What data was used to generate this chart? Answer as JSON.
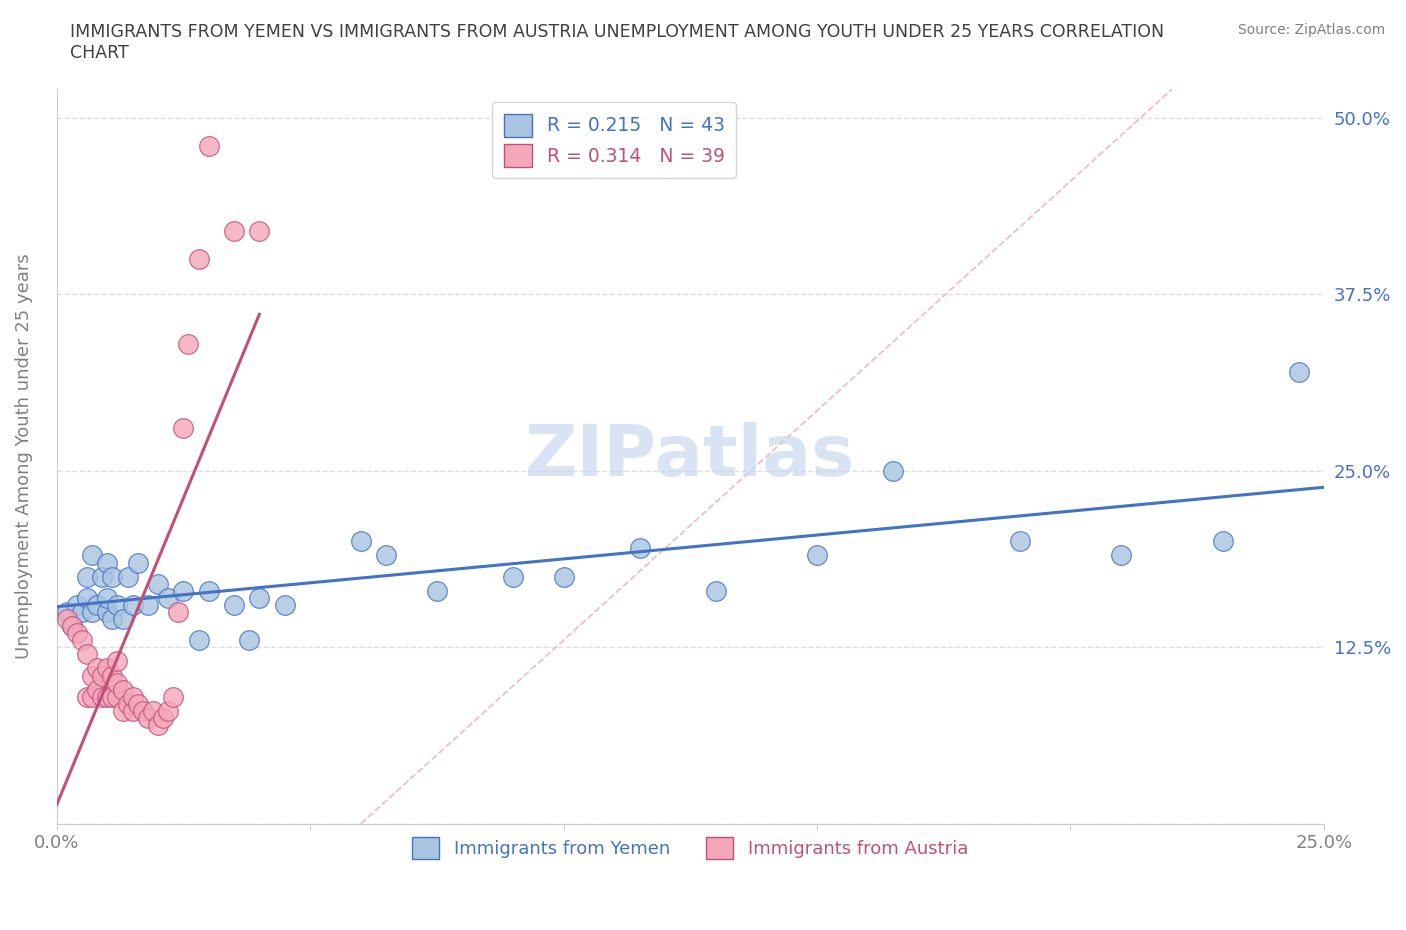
{
  "title": "IMMIGRANTS FROM YEMEN VS IMMIGRANTS FROM AUSTRIA UNEMPLOYMENT AMONG YOUTH UNDER 25 YEARS CORRELATION\nCHART",
  "source": "Source: ZipAtlas.com",
  "ylabel": "Unemployment Among Youth under 25 years",
  "xlabel": "",
  "xlim": [
    0.0,
    0.25
  ],
  "ylim": [
    0.0,
    0.52
  ],
  "xticks": [
    0.0,
    0.05,
    0.1,
    0.15,
    0.2,
    0.25
  ],
  "xticklabels": [
    "0.0%",
    "",
    "",
    "",
    "",
    "25.0%"
  ],
  "ytick_positions": [
    0.0,
    0.125,
    0.25,
    0.375,
    0.5
  ],
  "yticklabels": [
    "",
    "12.5%",
    "25.0%",
    "37.5%",
    "50.0%"
  ],
  "R_yemen": 0.215,
  "N_yemen": 43,
  "R_austria": 0.314,
  "N_austria": 39,
  "color_yemen": "#a8c4e0",
  "color_austria": "#f4a7b9",
  "line_color_yemen": "#4472c4",
  "line_color_austria": "#c0507a",
  "diag_line_color": "#e8c0c8",
  "watermark_color": "#c8d8ee",
  "background_color": "#ffffff",
  "grid_color": "#dddddd",
  "title_color": "#404040",
  "tick_label_color": "#808080",
  "yemen_x": [
    0.002,
    0.003,
    0.004,
    0.005,
    0.006,
    0.006,
    0.007,
    0.007,
    0.008,
    0.009,
    0.01,
    0.01,
    0.01,
    0.011,
    0.011,
    0.012,
    0.013,
    0.014,
    0.015,
    0.016,
    0.018,
    0.02,
    0.022,
    0.025,
    0.028,
    0.03,
    0.035,
    0.038,
    0.04,
    0.045,
    0.06,
    0.065,
    0.075,
    0.09,
    0.1,
    0.115,
    0.13,
    0.15,
    0.165,
    0.19,
    0.21,
    0.23,
    0.245
  ],
  "yemen_y": [
    0.15,
    0.14,
    0.155,
    0.15,
    0.16,
    0.175,
    0.15,
    0.19,
    0.155,
    0.175,
    0.15,
    0.16,
    0.185,
    0.145,
    0.175,
    0.155,
    0.145,
    0.175,
    0.155,
    0.185,
    0.155,
    0.17,
    0.16,
    0.165,
    0.13,
    0.165,
    0.155,
    0.13,
    0.16,
    0.155,
    0.2,
    0.19,
    0.165,
    0.175,
    0.175,
    0.195,
    0.165,
    0.19,
    0.25,
    0.2,
    0.19,
    0.2,
    0.32
  ],
  "austria_x": [
    0.002,
    0.003,
    0.004,
    0.005,
    0.006,
    0.006,
    0.007,
    0.007,
    0.008,
    0.008,
    0.009,
    0.009,
    0.01,
    0.01,
    0.011,
    0.011,
    0.012,
    0.012,
    0.012,
    0.013,
    0.013,
    0.014,
    0.015,
    0.015,
    0.016,
    0.017,
    0.018,
    0.019,
    0.02,
    0.021,
    0.022,
    0.023,
    0.024,
    0.025,
    0.026,
    0.028,
    0.03,
    0.035,
    0.04
  ],
  "austria_y": [
    0.145,
    0.14,
    0.135,
    0.13,
    0.09,
    0.12,
    0.09,
    0.105,
    0.095,
    0.11,
    0.09,
    0.105,
    0.09,
    0.11,
    0.09,
    0.105,
    0.09,
    0.1,
    0.115,
    0.08,
    0.095,
    0.085,
    0.08,
    0.09,
    0.085,
    0.08,
    0.075,
    0.08,
    0.07,
    0.075,
    0.08,
    0.09,
    0.15,
    0.28,
    0.34,
    0.4,
    0.48,
    0.42,
    0.42
  ]
}
